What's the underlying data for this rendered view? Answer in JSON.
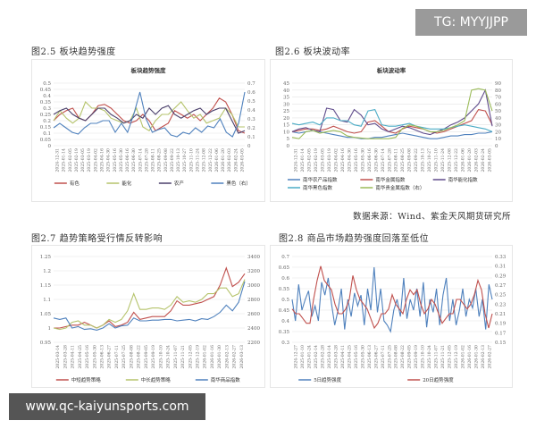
{
  "watermarks": {
    "top": "TG: MYYJJPP",
    "bottom": "www.qc-kaiyunsports.com"
  },
  "source": "数据来源：Wind、紫金天风期货研究所",
  "chart_data": [
    {
      "id": "fig25",
      "caption": "图2.5 板块趋势强度",
      "title": "板块趋势强度",
      "type": "line",
      "ylim": [
        0,
        0.5
      ],
      "yticks": [
        0,
        0.05,
        0.1,
        0.15,
        0.2,
        0.25,
        0.3,
        0.35,
        0.4,
        0.45,
        0.5
      ],
      "y2lim": [
        0,
        0.7
      ],
      "y2ticks": [
        0,
        0.1,
        0.2,
        0.3,
        0.4,
        0.5,
        0.6,
        0.7
      ],
      "grid": true,
      "legend": "bottom",
      "x_ticks": [
        "2024-12-31",
        "2025-01-14",
        "2025-02-05",
        "2025-02-19",
        "2025-03-05",
        "2025-03-19",
        "2025-04-02",
        "2025-04-16",
        "2025-04-30",
        "2025-05-16",
        "2025-05-30",
        "2025-06-16",
        "2025-06-30",
        "2025-07-14",
        "2025-07-28",
        "2025-08-11",
        "2025-08-25",
        "2025-09-08",
        "2025-09-22",
        "2025-10-13",
        "2025-10-27",
        "2025-11-10",
        "2025-11-24",
        "2025-12-08",
        "2025-12-22",
        "2026-01-06",
        "2026-01-20",
        "2026-02-03",
        "2026-02-24",
        "2026-03-05"
      ],
      "series": [
        {
          "name": "有色",
          "color": "#c0504d",
          "axis": "left",
          "values": [
            0.2,
            0.25,
            0.28,
            0.3,
            0.22,
            0.2,
            0.25,
            0.32,
            0.33,
            0.3,
            0.25,
            0.2,
            0.18,
            0.2,
            0.25,
            0.2,
            0.12,
            0.15,
            0.18,
            0.28,
            0.25,
            0.22,
            0.25,
            0.2,
            0.25,
            0.3,
            0.38,
            0.35,
            0.25,
            0.12,
            0.1
          ]
        },
        {
          "name": "能化",
          "color": "#b5c36b",
          "axis": "left",
          "values": [
            0.2,
            0.28,
            0.22,
            0.18,
            0.22,
            0.35,
            0.3,
            0.3,
            0.28,
            0.22,
            0.2,
            0.18,
            0.2,
            0.3,
            0.15,
            0.12,
            0.2,
            0.25,
            0.25,
            0.3,
            0.35,
            0.28,
            0.22,
            0.25,
            0.18,
            0.2,
            0.22,
            0.3,
            0.25,
            0.15,
            0.15
          ]
        },
        {
          "name": "农产",
          "color": "#4a3f6b",
          "axis": "left",
          "values": [
            0.25,
            0.28,
            0.3,
            0.25,
            0.22,
            0.2,
            0.25,
            0.3,
            0.3,
            0.25,
            0.22,
            0.18,
            0.2,
            0.25,
            0.22,
            0.3,
            0.25,
            0.3,
            0.32,
            0.25,
            0.22,
            0.25,
            0.28,
            0.3,
            0.25,
            0.28,
            0.3,
            0.3,
            0.2,
            0.1,
            0.12
          ]
        },
        {
          "name": "黑色（右）",
          "color": "#4f81bd",
          "axis": "right",
          "values": [
            0.2,
            0.25,
            0.2,
            0.15,
            0.13,
            0.2,
            0.25,
            0.25,
            0.28,
            0.28,
            0.15,
            0.25,
            0.15,
            0.35,
            0.6,
            0.3,
            0.15,
            0.18,
            0.2,
            0.12,
            0.1,
            0.15,
            0.13,
            0.2,
            0.15,
            0.22,
            0.2,
            0.3,
            0.15,
            0.1,
            0.25,
            0.6
          ]
        }
      ]
    },
    {
      "id": "fig26",
      "caption": "图2.6 板块波动率",
      "title": "板块波动率",
      "type": "line",
      "ylim": [
        0,
        45
      ],
      "yticks": [
        0,
        5,
        10,
        15,
        20,
        25,
        30,
        35,
        40,
        45
      ],
      "y2lim": [
        0,
        90
      ],
      "y2ticks": [
        0,
        10,
        20,
        30,
        40,
        50,
        60,
        70,
        80,
        90
      ],
      "grid": true,
      "legend": "bottom",
      "x_ticks": [
        "2024-12-31",
        "2025-01-14",
        "2025-02-05",
        "2025-02-19",
        "2025-03-05",
        "2025-03-19",
        "2025-04-02",
        "2025-04-16",
        "2025-04-30",
        "2025-05-16",
        "2025-05-30",
        "2025-06-16",
        "2025-06-30",
        "2025-07-14",
        "2025-07-28",
        "2025-08-11",
        "2025-08-25",
        "2025-09-08",
        "2025-09-22",
        "2025-10-13",
        "2025-10-27",
        "2025-11-10",
        "2025-11-24",
        "2025-12-08",
        "2025-12-22",
        "2026-01-06",
        "2026-01-20",
        "2026-02-03",
        "2026-02-24",
        "2026-03-05"
      ],
      "series": [
        {
          "name": "南华农产品指数",
          "color": "#4f81bd",
          "axis": "left",
          "values": [
            10,
            9,
            10,
            11,
            10,
            9,
            8,
            7,
            6,
            6,
            5,
            5,
            6,
            6,
            7,
            8,
            9,
            8,
            7,
            6,
            5,
            5,
            6,
            7,
            7,
            8,
            8,
            9,
            9,
            10
          ]
        },
        {
          "name": "南华金属指数",
          "color": "#c0504d",
          "axis": "left",
          "values": [
            10,
            11,
            12,
            12,
            11,
            12,
            14,
            12,
            10,
            9,
            10,
            17,
            18,
            14,
            10,
            9,
            12,
            14,
            13,
            12,
            10,
            9,
            10,
            12,
            14,
            16,
            18,
            26,
            25,
            15
          ]
        },
        {
          "name": "南华能化指数",
          "color": "#5f4b8b",
          "axis": "left",
          "values": [
            10,
            12,
            13,
            11,
            10,
            27,
            26,
            18,
            17,
            26,
            22,
            15,
            16,
            12,
            10,
            12,
            14,
            13,
            11,
            9,
            8,
            10,
            12,
            15,
            17,
            20,
            25,
            30,
            40,
            14
          ]
        },
        {
          "name": "南华黑色指数",
          "color": "#4bacc6",
          "axis": "left",
          "values": [
            16,
            15,
            16,
            17,
            15,
            20,
            20,
            18,
            18,
            15,
            14,
            25,
            26,
            15,
            14,
            14,
            15,
            16,
            14,
            13,
            12,
            12,
            12,
            13,
            14,
            15,
            14,
            13,
            12,
            10
          ]
        },
        {
          "name": "南华贵金属指数（右）",
          "color": "#9bbb59",
          "axis": "right",
          "values": [
            12,
            10,
            20,
            22,
            18,
            20,
            22,
            20,
            14,
            12,
            11,
            10,
            10,
            10,
            10,
            12,
            25,
            30,
            28,
            24,
            20,
            20,
            22,
            26,
            30,
            36,
            80,
            82,
            80,
            50
          ]
        }
      ]
    },
    {
      "id": "fig27",
      "caption": "图2.7 趋势策略受行情反转影响",
      "title": "",
      "type": "line",
      "ylim": [
        0.95,
        1.25
      ],
      "yticks": [
        0.95,
        1,
        1.05,
        1.1,
        1.15,
        1.2,
        1.25
      ],
      "y2lim": [
        2200,
        3400
      ],
      "y2ticks": [
        2200,
        2400,
        2600,
        2800,
        3000,
        3200,
        3400
      ],
      "grid": true,
      "legend": "bottom",
      "x_ticks": [
        "2025-03-14",
        "2025-03-28",
        "2025-04-11",
        "2025-04-25",
        "2025-05-16",
        "2025-05-30",
        "2025-06-13",
        "2025-06-27",
        "2025-07-11",
        "2025-07-25",
        "2025-08-08",
        "2025-08-22",
        "2025-09-05",
        "2025-09-19",
        "2025-10-10",
        "2025-10-24",
        "2025-11-07",
        "2025-11-21",
        "2025-12-05",
        "2025-12-19",
        "2026-01-02",
        "2026-01-16",
        "2026-01-30",
        "2026-02-13",
        "2026-02-27",
        "2026-03-13"
      ],
      "series": [
        {
          "name": "中短趋势策略",
          "color": "#c0504d",
          "axis": "left",
          "values": [
            1.0,
            1.0,
            1.005,
            1.01,
            1.01,
            1.02,
            1.01,
            1.0,
            1.01,
            1.025,
            1.005,
            1.01,
            1.02,
            1.055,
            1.03,
            1.035,
            1.04,
            1.04,
            1.04,
            1.06,
            1.095,
            1.08,
            1.08,
            1.085,
            1.09,
            1.1,
            1.11,
            1.15,
            1.21,
            1.145,
            1.16,
            1.19
          ]
        },
        {
          "name": "中长趋势策略",
          "color": "#b5c36b",
          "axis": "left",
          "values": [
            1.0,
            0.995,
            1.0,
            1.02,
            1.025,
            1.01,
            1.01,
            1.0,
            1.01,
            1.03,
            1.02,
            1.03,
            1.06,
            1.12,
            1.065,
            1.065,
            1.07,
            1.07,
            1.065,
            1.08,
            1.11,
            1.09,
            1.095,
            1.09,
            1.1,
            1.12,
            1.12,
            1.14,
            1.14,
            1.11,
            1.12,
            1.17
          ]
        },
        {
          "name": "南华商品指数",
          "color": "#4f81bd",
          "axis": "right",
          "values": [
            2540,
            2520,
            2540,
            2400,
            2420,
            2380,
            2390,
            2370,
            2400,
            2460,
            2400,
            2430,
            2440,
            2540,
            2500,
            2500,
            2510,
            2510,
            2520,
            2520,
            2500,
            2510,
            2520,
            2500,
            2530,
            2520,
            2560,
            2620,
            2720,
            2640,
            2760,
            3050
          ]
        }
      ]
    },
    {
      "id": "fig28",
      "caption": "图2.8 商品市场趋势强度回落至低位",
      "title": "",
      "type": "line",
      "ylim": [
        0.3,
        0.7
      ],
      "yticks": [
        0.3,
        0.35,
        0.4,
        0.45,
        0.5,
        0.55,
        0.6,
        0.65,
        0.7
      ],
      "y2lim": [
        0.15,
        0.33
      ],
      "y2ticks": [
        0.15,
        0.17,
        0.19,
        0.21,
        0.23,
        0.25,
        0.27,
        0.29,
        0.31,
        0.33
      ],
      "grid": true,
      "legend": "bottom",
      "x_ticks": [
        "2024-12-27",
        "2025-01-10",
        "2025-01-24",
        "2025-02-14",
        "2025-02-28",
        "2025-03-14",
        "2025-03-28",
        "2025-04-11",
        "2025-04-25",
        "2025-05-16",
        "2025-05-30",
        "2025-06-13",
        "2025-06-27",
        "2025-07-11",
        "2025-07-25",
        "2025-08-08",
        "2025-08-22",
        "2025-09-05",
        "2025-09-19",
        "2025-10-10",
        "2025-10-24",
        "2025-11-07",
        "2025-11-21",
        "2025-12-05",
        "2025-12-19",
        "2026-01-02",
        "2026-01-16",
        "2026-01-30",
        "2026-02-13",
        "2026-02-27"
      ],
      "series": [
        {
          "name": "5日趋势强度",
          "color": "#4f81bd",
          "axis": "left",
          "values": [
            0.5,
            0.4,
            0.57,
            0.45,
            0.5,
            0.54,
            0.42,
            0.47,
            0.4,
            0.58,
            0.52,
            0.6,
            0.48,
            0.38,
            0.45,
            0.55,
            0.36,
            0.5,
            0.42,
            0.53,
            0.47,
            0.52,
            0.38,
            0.55,
            0.45,
            0.65,
            0.44,
            0.55,
            0.4,
            0.38,
            0.35,
            0.45,
            0.5,
            0.42,
            0.6,
            0.41,
            0.5,
            0.45,
            0.55,
            0.42,
            0.58,
            0.37,
            0.5,
            0.44,
            0.55,
            0.38,
            0.52,
            0.6,
            0.4,
            0.5,
            0.38,
            0.45,
            0.55,
            0.42,
            0.5,
            0.46,
            0.55,
            0.42,
            0.5,
            0.36,
            0.57,
            0.5
          ]
        },
        {
          "name": "20日趋势强度",
          "color": "#c0504d",
          "axis": "right",
          "values": [
            0.22,
            0.21,
            0.21,
            0.2,
            0.19,
            0.19,
            0.24,
            0.28,
            0.31,
            0.28,
            0.27,
            0.26,
            0.23,
            0.21,
            0.21,
            0.22,
            0.24,
            0.29,
            0.26,
            0.24,
            0.23,
            0.22,
            0.2,
            0.18,
            0.19,
            0.21,
            0.21,
            0.22,
            0.25,
            0.23,
            0.22,
            0.21,
            0.24,
            0.26,
            0.25,
            0.26,
            0.23,
            0.21,
            0.22,
            0.24,
            0.23,
            0.21,
            0.19,
            0.2,
            0.21,
            0.21,
            0.24,
            0.24,
            0.23,
            0.22,
            0.23,
            0.25,
            0.28,
            0.26,
            0.21,
            0.18,
            0.21
          ]
        }
      ]
    }
  ]
}
